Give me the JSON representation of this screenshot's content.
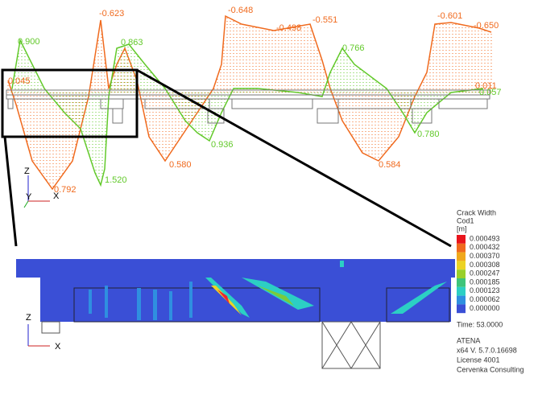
{
  "diagram": {
    "orange_labels": [
      "-0.623",
      "-0.648",
      "-0.498",
      "-0.551",
      "-0.601",
      "-0.650",
      "0.045",
      "0.792",
      "0.580",
      "0.584",
      "0.011"
    ],
    "green_labels": [
      "0.900",
      "0.863",
      "0.766",
      "0.936",
      "1.520",
      "0.780",
      "0.057"
    ],
    "axes_top": {
      "z": "Z",
      "y": "Y",
      "x": "X"
    },
    "axes_bottom": {
      "z": "Z",
      "x": "X"
    },
    "legend": {
      "title": "Crack Width",
      "subtitle": "Cod1",
      "unit": "[m]",
      "values": [
        "0.000493",
        "0.000432",
        "0.000370",
        "0.000308",
        "0.000247",
        "0.000185",
        "0.000123",
        "0.000062",
        "0.000000"
      ]
    },
    "info": [
      "Time:  53.0000",
      "ATENA",
      "x64 V. 5.7.0.16698",
      "License 4001",
      "Cervenka Consulting"
    ]
  }
}
